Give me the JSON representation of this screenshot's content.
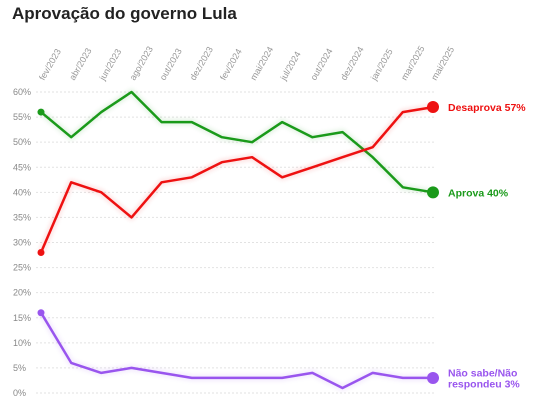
{
  "title": "Aprovação do governo Lula",
  "chart_data": {
    "type": "line",
    "title": "Aprovação do governo Lula",
    "xlabel": "",
    "ylabel": "",
    "ylim": [
      0,
      60
    ],
    "yticks": [
      "0%",
      "5%",
      "10%",
      "15%",
      "20%",
      "25%",
      "30%",
      "35%",
      "40%",
      "45%",
      "50%",
      "55%",
      "60%"
    ],
    "categories": [
      "fev/2023",
      "abr/2023",
      "jun/2023",
      "ago/2023",
      "out/2023",
      "dez/2023",
      "fev/2024",
      "mai/2024",
      "jul/2024",
      "out/2024",
      "dez/2024",
      "jan/2025",
      "mar/2025",
      "mai/2025"
    ],
    "grid": true,
    "legend": "end-of-line labels",
    "series": [
      {
        "name": "Aprova",
        "end_label": "Aprova 40%",
        "color": "#1a9a1a",
        "x": [
          "fev/2023",
          "abr/2023",
          "jun/2023",
          "ago/2023",
          "out/2023",
          "dez/2023",
          "fev/2024",
          "mai/2024",
          "jul/2024",
          "out/2024",
          "dez/2024",
          "jan/2025",
          "mar/2025",
          "mai/2025"
        ],
        "values": [
          56,
          51,
          56,
          60,
          54,
          54,
          51,
          50,
          54,
          51,
          52,
          47,
          41,
          40
        ]
      },
      {
        "name": "Desaprova",
        "end_label": "Desaprova 57%",
        "color": "#ee1111",
        "x": [
          "fev/2023",
          "abr/2023",
          "jun/2023",
          "ago/2023",
          "out/2023",
          "dez/2023",
          "fev/2024",
          "mai/2024",
          "jul/2024",
          "out/2024",
          "dez/2024",
          "jan/2025",
          "mar/2025",
          "mai/2025"
        ],
        "values": [
          28,
          42,
          40,
          35,
          42,
          43,
          46,
          47,
          43,
          45,
          47,
          49,
          56,
          57
        ]
      },
      {
        "name": "Não sabe/Não respondeu",
        "end_label": [
          "Não sabe/Não",
          "respondeu 3%"
        ],
        "color": "#9955ee",
        "x": [
          "fev/2023",
          "abr/2023",
          "jun/2023",
          "ago/2023",
          "out/2023",
          "dez/2023",
          "fev/2024",
          "mai/2024",
          "jul/2024",
          "out/2024",
          "dez/2024",
          "jan/2025",
          "mar/2025",
          "mai/2025"
        ],
        "values": [
          16,
          6,
          4,
          5,
          4,
          3,
          3,
          3,
          3,
          4,
          1,
          4,
          3,
          3
        ]
      }
    ]
  }
}
